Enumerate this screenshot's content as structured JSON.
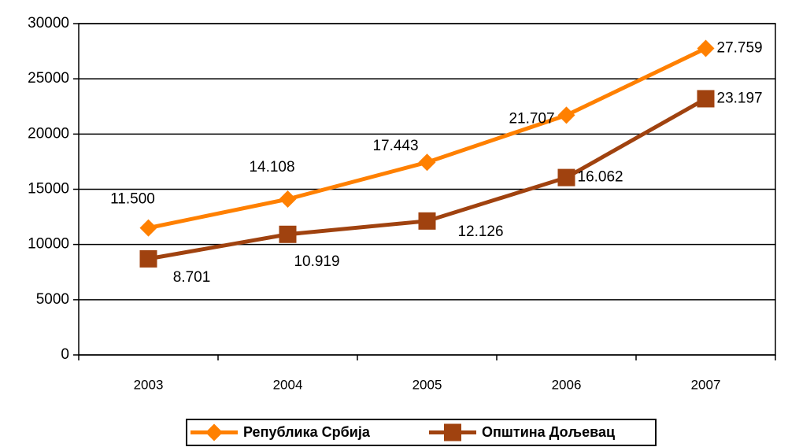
{
  "chart_data": {
    "type": "line",
    "categories": [
      "2003",
      "2004",
      "2005",
      "2006",
      "2007"
    ],
    "series": [
      {
        "name": "Република Србија",
        "color": "#ff8000",
        "marker": "diamond",
        "values": [
          11500,
          14108,
          17443,
          21707,
          27759
        ],
        "value_labels": [
          "11.500",
          "14.108",
          "17.443",
          "21.707",
          "27.759"
        ]
      },
      {
        "name": "Општина Дољевац",
        "color": "#a0420f",
        "marker": "square",
        "values": [
          8701,
          10919,
          12126,
          16062,
          23197
        ],
        "value_labels": [
          "8.701",
          "10.919",
          "12.126",
          "16.062",
          "23.197"
        ]
      }
    ],
    "ylim": [
      0,
      30000
    ],
    "yticks": [
      0,
      5000,
      10000,
      15000,
      20000,
      25000,
      30000
    ],
    "grid": true,
    "legend": "bottom"
  }
}
